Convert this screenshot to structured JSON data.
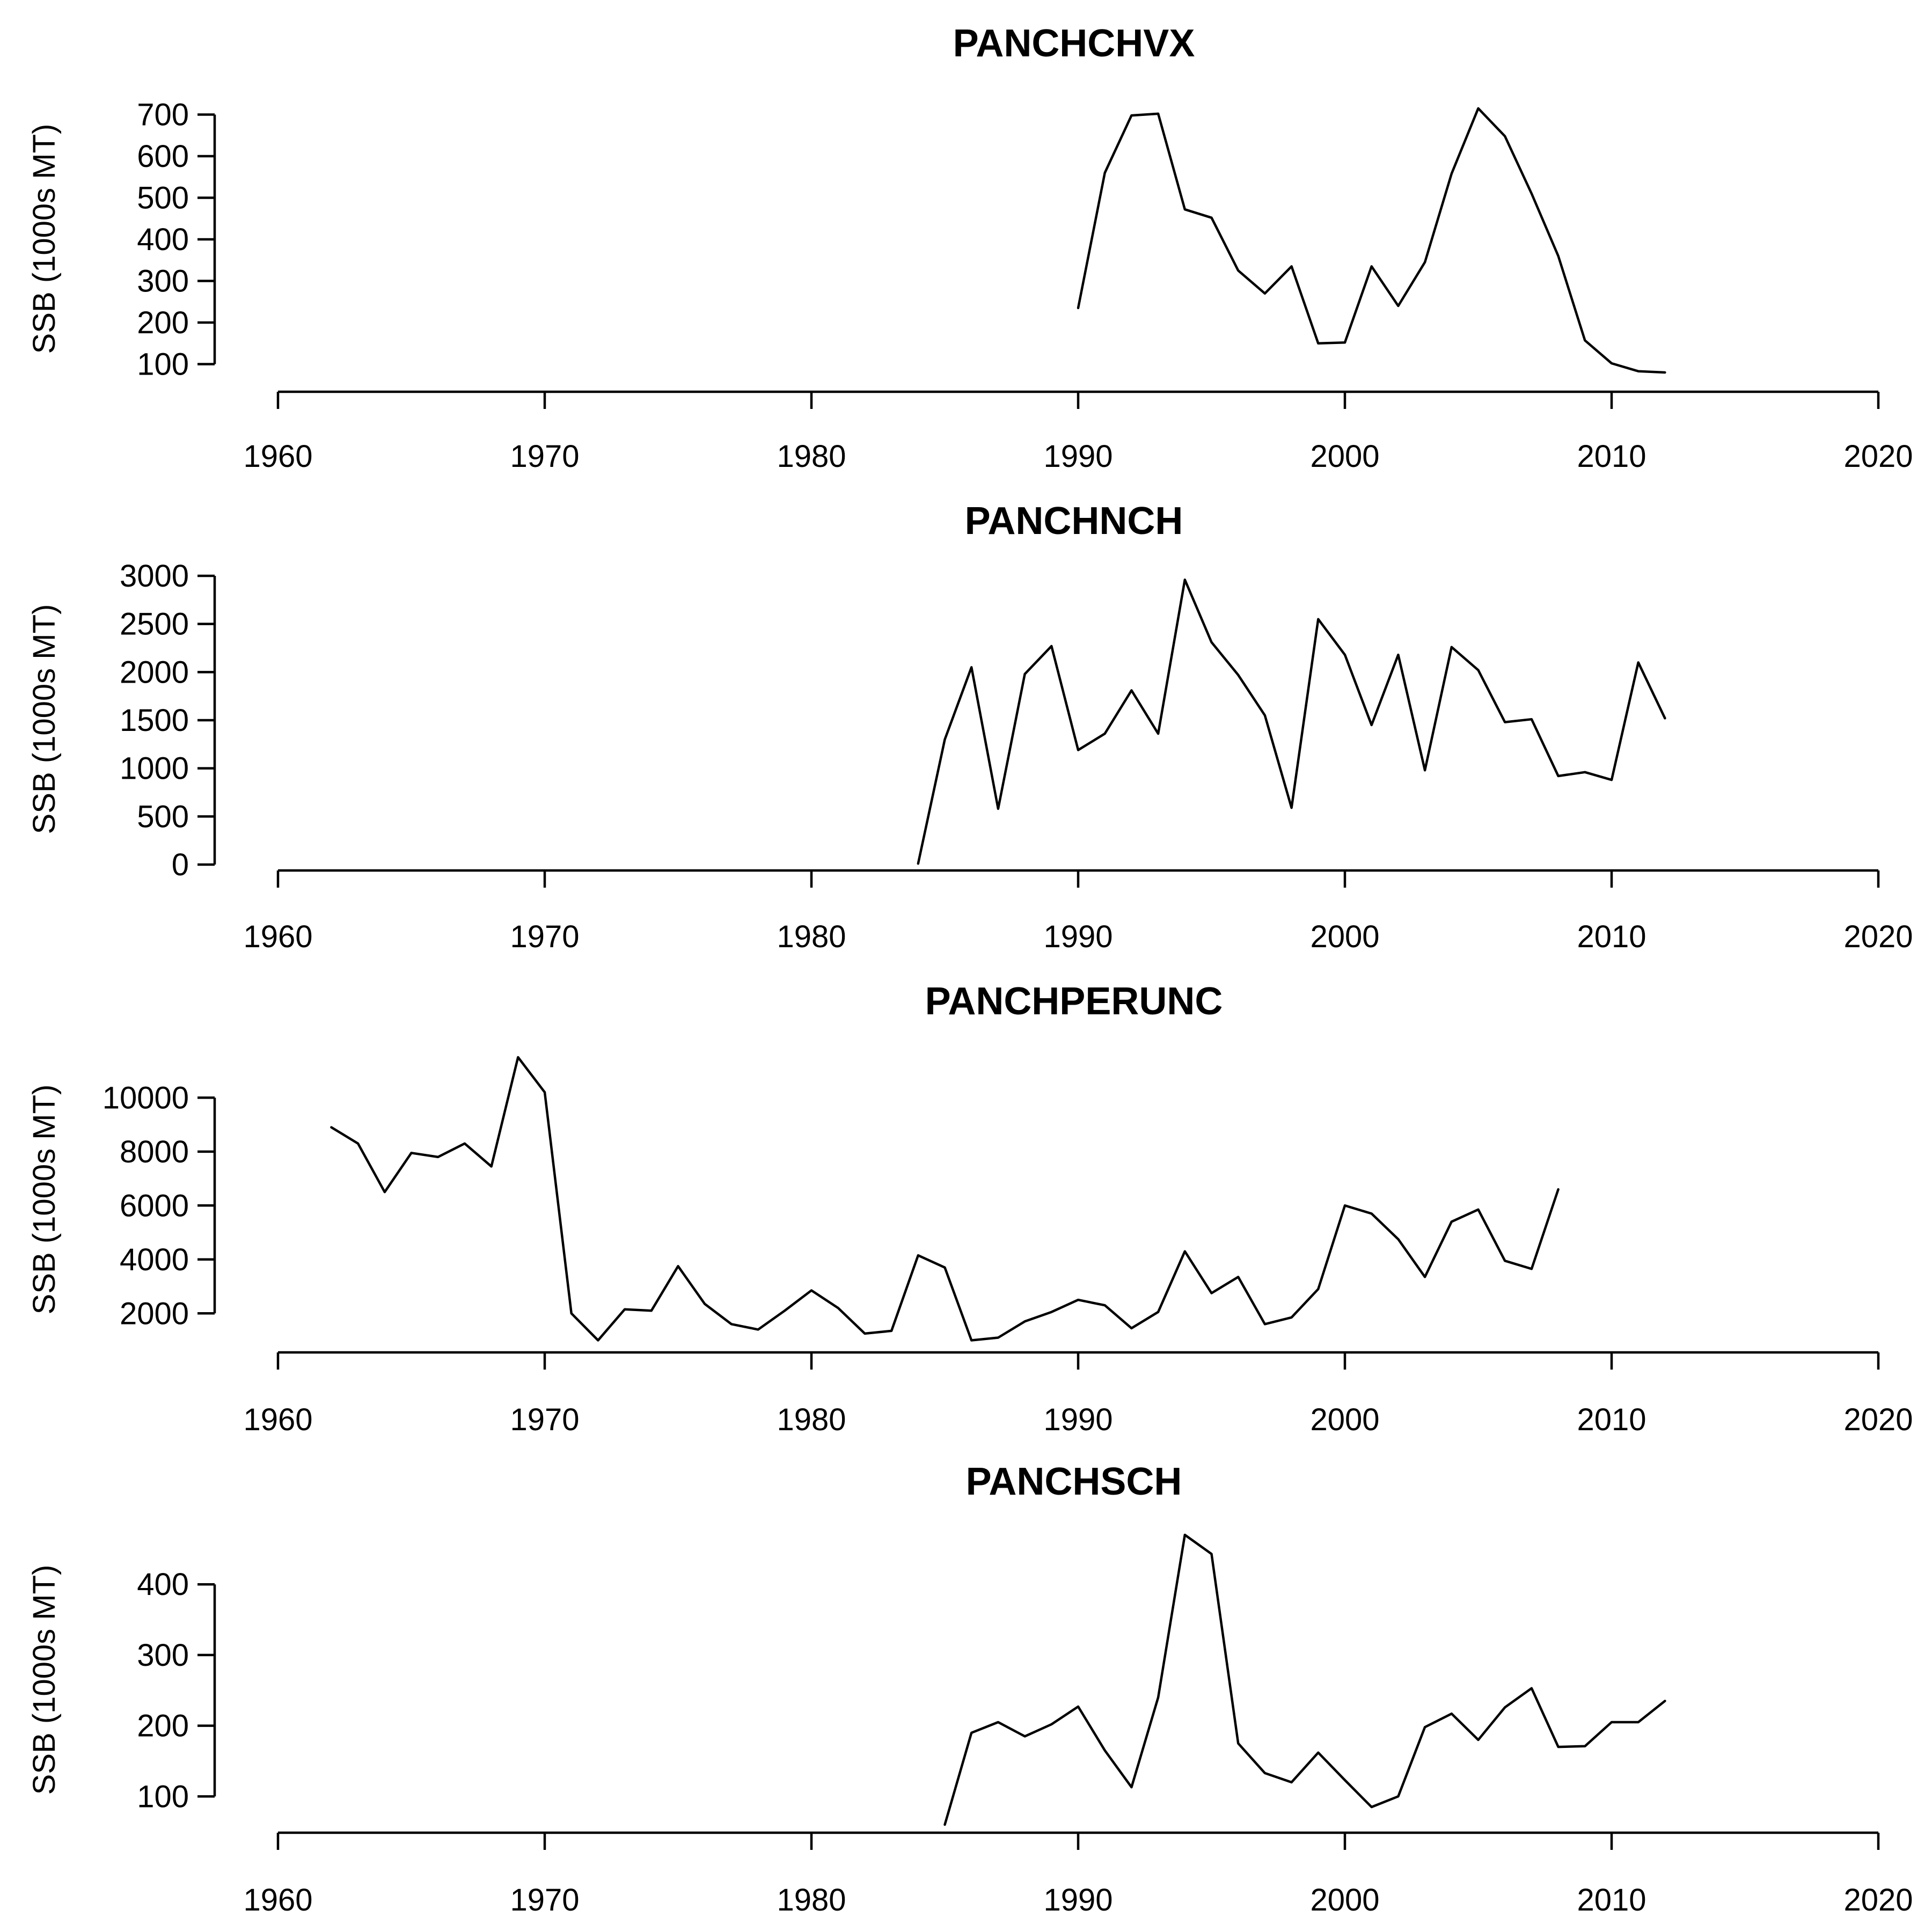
{
  "chart_data": [
    {
      "type": "line",
      "title": "PANCHCHVX",
      "xlabel": "",
      "ylabel": "SSB (1000s MT)",
      "xlim": [
        1960,
        2020
      ],
      "xticks": [
        1960,
        1970,
        1980,
        1990,
        2000,
        2010,
        2020
      ],
      "yticks": [
        100,
        200,
        300,
        400,
        500,
        600,
        700
      ],
      "ylim": [
        80,
        720
      ],
      "grid": false,
      "x": [
        1990,
        1991,
        1992,
        1993,
        1994,
        1995,
        1996,
        1997,
        1998,
        1999,
        2000,
        2001,
        2002,
        2003,
        2004,
        2005,
        2006,
        2007,
        2008,
        2009,
        2010,
        2011,
        2012
      ],
      "series": [
        {
          "values": [
            235,
            560,
            698,
            702,
            472,
            452,
            325,
            270,
            335,
            150,
            152,
            335,
            240,
            345,
            558,
            715,
            648,
            510,
            360,
            157,
            102,
            83,
            80
          ]
        }
      ]
    },
    {
      "type": "line",
      "title": "PANCHNCH",
      "xlabel": "",
      "ylabel": "SSB (1000s MT)",
      "xlim": [
        1960,
        2020
      ],
      "xticks": [
        1960,
        1970,
        1980,
        1990,
        2000,
        2010,
        2020
      ],
      "yticks": [
        0,
        500,
        1000,
        1500,
        2000,
        2500,
        3000
      ],
      "ylim": [
        0,
        3000
      ],
      "grid": false,
      "x": [
        1984,
        1985,
        1986,
        1987,
        1988,
        1989,
        1990,
        1991,
        1992,
        1993,
        1994,
        1995,
        1996,
        1997,
        1998,
        1999,
        2000,
        2001,
        2002,
        2003,
        2004,
        2005,
        2006,
        2007,
        2008,
        2009,
        2010,
        2011,
        2012
      ],
      "series": [
        {
          "values": [
            10,
            1300,
            2050,
            580,
            1980,
            2270,
            1190,
            1360,
            1810,
            1360,
            2960,
            2310,
            1970,
            1550,
            590,
            2550,
            2180,
            1450,
            2180,
            980,
            2260,
            2020,
            1480,
            1510,
            920,
            960,
            880,
            2100,
            1520
          ]
        }
      ]
    },
    {
      "type": "line",
      "title": "PANCHPERUNC",
      "xlabel": "",
      "ylabel": "SSB (1000s MT)",
      "xlim": [
        1960,
        2020
      ],
      "xticks": [
        1960,
        1970,
        1980,
        1990,
        2000,
        2010,
        2020
      ],
      "yticks": [
        2000,
        4000,
        6000,
        8000,
        10000
      ],
      "ylim": [
        950,
        11500
      ],
      "grid": false,
      "x": [
        1962,
        1963,
        1964,
        1965,
        1966,
        1967,
        1968,
        1969,
        1970,
        1971,
        1972,
        1973,
        1974,
        1975,
        1976,
        1977,
        1978,
        1979,
        1980,
        1981,
        1982,
        1983,
        1984,
        1985,
        1986,
        1987,
        1988,
        1989,
        1990,
        1991,
        1992,
        1993,
        1994,
        1995,
        1996,
        1997,
        1998,
        1999,
        2000,
        2001,
        2002,
        2003,
        2004,
        2005,
        2006,
        2007,
        2008
      ],
      "series": [
        {
          "values": [
            8900,
            8300,
            6500,
            7950,
            7800,
            8300,
            7450,
            11500,
            10200,
            2000,
            1000,
            2150,
            2100,
            3750,
            2350,
            1600,
            1400,
            2100,
            2850,
            2200,
            1250,
            1350,
            4150,
            3700,
            1000,
            1100,
            1700,
            2050,
            2500,
            2300,
            1450,
            2050,
            4300,
            2750,
            3350,
            1600,
            1850,
            2900,
            6000,
            5700,
            4750,
            3350,
            5400,
            5850,
            3950,
            3650,
            6600
          ]
        }
      ]
    },
    {
      "type": "line",
      "title": "PANCHSCH",
      "xlabel": "",
      "ylabel": "SSB (1000s MT)",
      "xlim": [
        1960,
        2020
      ],
      "xticks": [
        1960,
        1970,
        1980,
        1990,
        2000,
        2010,
        2020
      ],
      "yticks": [
        100,
        200,
        300,
        400
      ],
      "ylim": [
        60,
        470
      ],
      "grid": false,
      "x": [
        1985,
        1986,
        1987,
        1988,
        1989,
        1990,
        1991,
        1992,
        1993,
        1994,
        1995,
        1996,
        1997,
        1998,
        1999,
        2000,
        2001,
        2002,
        2003,
        2004,
        2005,
        2006,
        2007,
        2008,
        2009,
        2010,
        2011,
        2012
      ],
      "series": [
        {
          "values": [
            60,
            190,
            205,
            185,
            202,
            227,
            165,
            113,
            240,
            470,
            443,
            175,
            133,
            120,
            162,
            123,
            85,
            100,
            198,
            217,
            180,
            226,
            253,
            170,
            171,
            205,
            205,
            235
          ]
        }
      ]
    }
  ]
}
